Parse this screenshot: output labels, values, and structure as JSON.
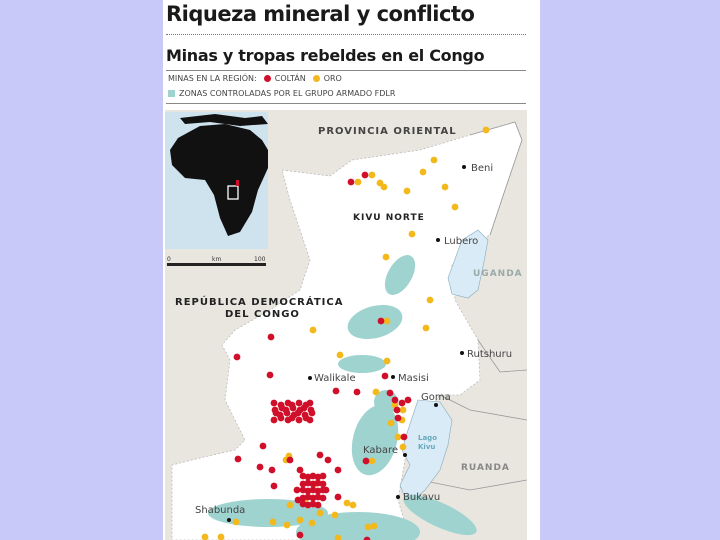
{
  "header": {
    "title": "Riqueza mineral y conflicto",
    "subtitle": "Minas y tropas rebeldes en el Congo"
  },
  "legend": {
    "mines_label": "MINAS EN LA REGIÓN:",
    "coltan_label": "COLTÁN",
    "gold_label": "ORO",
    "zones_label": "ZONAS CONTROLADAS POR EL GRUPO ARMADO FDLR",
    "colors": {
      "coltan": "#d0102a",
      "gold": "#f2b81c",
      "zones": "#9fd3d0"
    }
  },
  "inset": {
    "scale_start": "0",
    "scale_unit": "km",
    "scale_end": "100"
  },
  "map": {
    "regions": {
      "provincia_oriental": "PROVINCIA ORIENTAL",
      "kivu_norte": "KIVU NORTE",
      "rdc_line1": "REPÚBLICA DEMOCRÁTICA",
      "rdc_line2": "DEL CONGO",
      "uganda": "UGANDA",
      "ruanda": "RUANDA",
      "lago_line1": "Lago",
      "lago_line2": "Kivu"
    },
    "cities": {
      "beni": "Beni",
      "lubero": "Lubero",
      "rutshuru": "Rutshuru",
      "walikale": "Walikale",
      "masisi": "Masisi",
      "goma": "Goma",
      "kabare": "Kabare",
      "bukavu": "Bukavu",
      "shabunda": "Shabunda"
    }
  }
}
